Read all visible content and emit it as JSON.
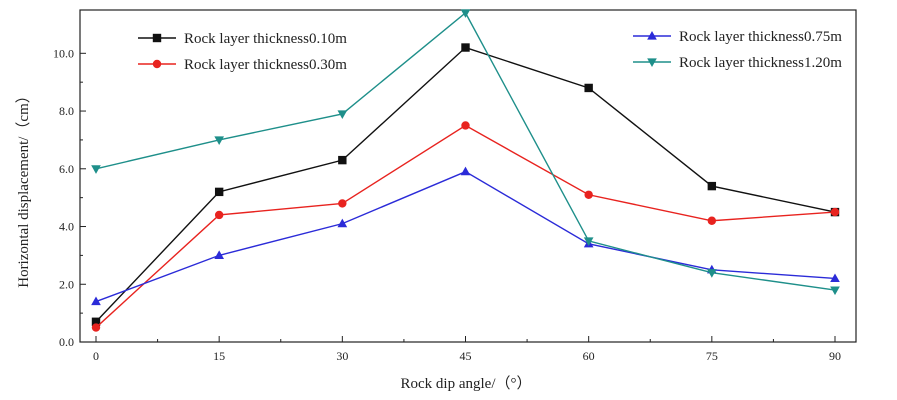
{
  "chart_data": {
    "type": "line",
    "xlabel": "Rock dip angle/（°）",
    "ylabel": "Horizontal displacement/（cm）",
    "x": [
      0,
      15,
      30,
      45,
      60,
      75,
      90
    ],
    "x_ticks": [
      "0",
      "15",
      "30",
      "45",
      "60",
      "75",
      "90"
    ],
    "xlim": [
      0,
      90
    ],
    "y_ticks": [
      "0.0",
      "2.0",
      "4.0",
      "6.0",
      "8.0",
      "10.0"
    ],
    "ylim": [
      0,
      11.5
    ],
    "grid": false,
    "series": [
      {
        "name": "Rock layer thickness0.10m",
        "color": "#111111",
        "marker": "square",
        "values": [
          0.7,
          5.2,
          6.3,
          10.2,
          8.8,
          5.4,
          4.5
        ]
      },
      {
        "name": "Rock layer thickness0.30m",
        "color": "#e8231f",
        "marker": "circle",
        "values": [
          0.5,
          4.4,
          4.8,
          7.5,
          5.1,
          4.2,
          4.5
        ]
      },
      {
        "name": "Rock layer thickness0.75m",
        "color": "#2b2bd8",
        "marker": "triangle-up",
        "values": [
          1.4,
          3.0,
          4.1,
          5.9,
          3.4,
          2.5,
          2.2
        ]
      },
      {
        "name": "Rock layer thickness1.20m",
        "color": "#1e8f8a",
        "marker": "triangle-down",
        "values": [
          6.0,
          7.0,
          7.9,
          11.4,
          3.5,
          2.4,
          1.8
        ]
      }
    ],
    "legend": [
      {
        "placement": "top-left",
        "series": [
          0,
          1
        ]
      },
      {
        "placement": "top-right",
        "series": [
          2,
          3
        ]
      }
    ]
  }
}
